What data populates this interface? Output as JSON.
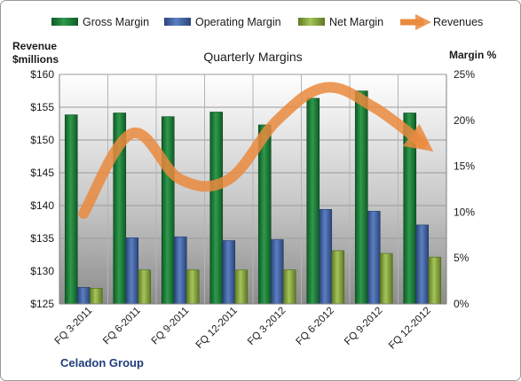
{
  "chart_data": {
    "type": "bar",
    "title": "Quarterly Margins",
    "left_axis_label_line1": "Revenue",
    "left_axis_label_line2": "$millions",
    "right_axis_label": "Margin %",
    "footer": "Celadon Group",
    "categories": [
      "FQ 3-2011",
      "FQ 6-2011",
      "FQ 9-2011",
      "FQ 12-2011",
      "FQ 3-2012",
      "FQ 6-2012",
      "FQ 9-2012",
      "FQ 12-2012"
    ],
    "left_axis": {
      "min": 125,
      "max": 160,
      "ticks": [
        "$125",
        "$130",
        "$135",
        "$140",
        "$145",
        "$150",
        "$155",
        "$160"
      ]
    },
    "right_axis": {
      "min": 0,
      "max": 25,
      "ticks": [
        "0%",
        "5%",
        "10%",
        "15%",
        "20%",
        "25%"
      ]
    },
    "grid": true,
    "legend_position": "top",
    "series": [
      {
        "name": "Gross Margin",
        "axis": "right",
        "kind": "bar",
        "color": "#1e7b3a",
        "values": [
          20.6,
          20.8,
          20.4,
          20.9,
          19.5,
          22.4,
          23.2,
          20.8
        ]
      },
      {
        "name": "Operating Margin",
        "axis": "right",
        "kind": "bar",
        "color": "#3f5f9f",
        "values": [
          1.8,
          7.2,
          7.3,
          6.9,
          7.0,
          10.3,
          10.1,
          8.6
        ]
      },
      {
        "name": "Net Margin",
        "axis": "right",
        "kind": "bar",
        "color": "#7f9a3c",
        "values": [
          1.7,
          3.7,
          3.7,
          3.7,
          3.7,
          5.8,
          5.5,
          5.1
        ]
      },
      {
        "name": "Revenues",
        "axis": "left",
        "kind": "line",
        "color": "#ea8a3e",
        "values": [
          138.8,
          151.0,
          144.0,
          144.0,
          153.0,
          158.0,
          155.0,
          149.5
        ]
      }
    ]
  }
}
